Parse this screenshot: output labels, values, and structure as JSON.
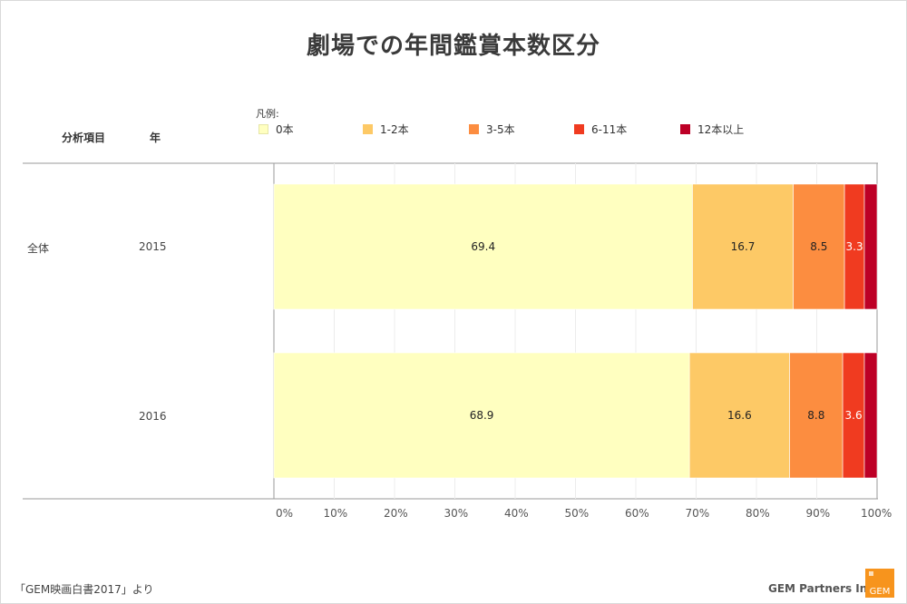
{
  "title": "劇場での年間鑑賞本数区分",
  "headers": {
    "category": "分析項目",
    "year": "年"
  },
  "legend_title": "凡例:",
  "group_label": "全体",
  "footer": {
    "source": "「GEM映画白書2017」より",
    "company": "GEM Partners Inc.",
    "logo_text": "GEM"
  },
  "colors": {
    "0本": "#ffffc0",
    "1-2本": "#fdc966",
    "3-5本": "#fc8d40",
    "6-11本": "#f03b20",
    "12本以上": "#bd0026"
  },
  "chart_data": {
    "type": "bar",
    "orientation": "horizontal",
    "stacked": true,
    "categories": [
      "2015",
      "2016"
    ],
    "series": [
      {
        "name": "0本",
        "values": [
          69.4,
          68.9
        ]
      },
      {
        "name": "1-2本",
        "values": [
          16.7,
          16.6
        ]
      },
      {
        "name": "3-5本",
        "values": [
          8.5,
          8.8
        ]
      },
      {
        "name": "6-11本",
        "values": [
          3.3,
          3.6
        ]
      },
      {
        "name": "12本以上",
        "values": [
          2.1,
          2.1
        ]
      }
    ],
    "data_labels": [
      [
        "69.4",
        "16.7",
        "8.5",
        "3.3",
        ""
      ],
      [
        "68.9",
        "16.6",
        "8.8",
        "3.6",
        ""
      ]
    ],
    "xlim": [
      0,
      100
    ],
    "xticks": [
      "0%",
      "10%",
      "20%",
      "30%",
      "40%",
      "50%",
      "60%",
      "70%",
      "80%",
      "90%",
      "100%"
    ],
    "grid": true,
    "legend_position": "top"
  }
}
